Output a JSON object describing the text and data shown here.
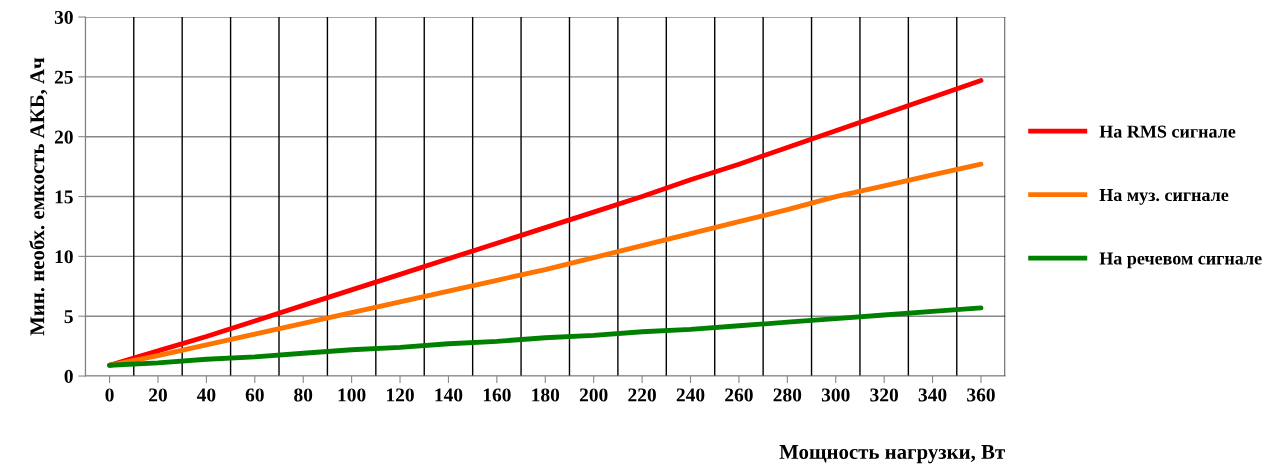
{
  "chart_data": {
    "type": "line",
    "xlabel": "Мощность нагрузки, Вт",
    "ylabel": "Мин. необх. емкость АКБ, Ач",
    "categories": [
      "0",
      "20",
      "40",
      "60",
      "80",
      "100",
      "120",
      "140",
      "160",
      "180",
      "200",
      "220",
      "240",
      "260",
      "280",
      "300",
      "320",
      "340",
      "360"
    ],
    "series": [
      {
        "name": "На RMS сигнале",
        "color": "#ff0000",
        "values": [
          0.9,
          2.1,
          3.3,
          4.6,
          5.9,
          7.2,
          8.5,
          9.8,
          11.1,
          12.4,
          13.7,
          15.0,
          16.4,
          17.7,
          19.1,
          20.5,
          21.9,
          23.3,
          24.7
        ]
      },
      {
        "name": "На муз. сигнале",
        "color": "#ff7300",
        "values": [
          0.9,
          1.7,
          2.6,
          3.5,
          4.4,
          5.3,
          6.2,
          7.1,
          8.0,
          8.9,
          9.9,
          10.9,
          11.9,
          12.9,
          13.9,
          15.0,
          15.9,
          16.8,
          17.7
        ]
      },
      {
        "name": "На речевом сигнале",
        "color": "#008000",
        "values": [
          0.9,
          1.1,
          1.4,
          1.6,
          1.9,
          2.2,
          2.4,
          2.7,
          2.9,
          3.2,
          3.4,
          3.7,
          3.9,
          4.2,
          4.5,
          4.8,
          5.1,
          5.4,
          5.7
        ]
      }
    ],
    "ylim": [
      0,
      30
    ],
    "yticks": [
      0,
      5,
      10,
      15,
      20,
      25,
      30
    ],
    "grid": true,
    "legend": "right",
    "marker": "none",
    "line_style": "solid"
  }
}
